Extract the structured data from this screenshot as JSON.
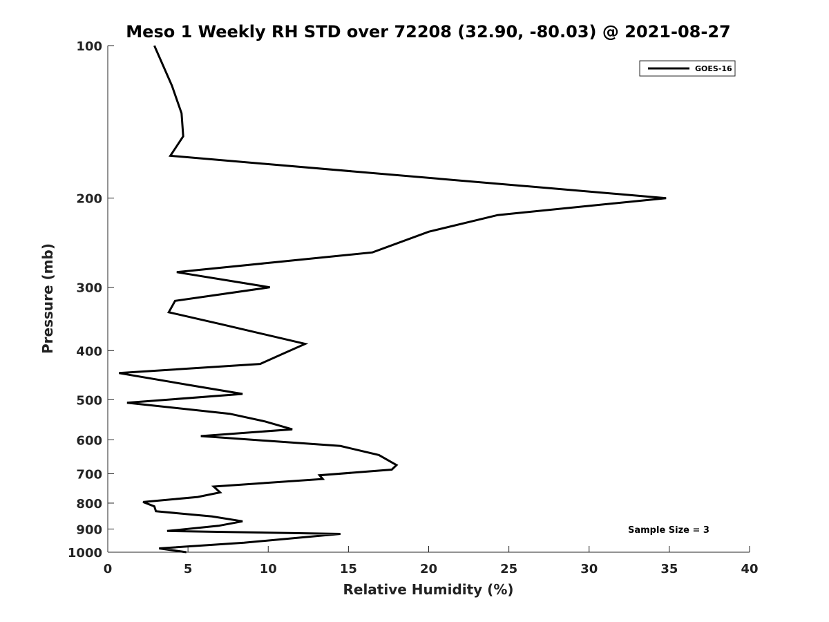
{
  "chart_data": {
    "type": "line",
    "title": "Meso 1 Weekly RH STD over 72208 (32.90, -80.03) @ 2021-08-27",
    "xlabel": "Relative Humidity (%)",
    "ylabel": "Pressure (mb)",
    "xlim": [
      0,
      40
    ],
    "ylim": [
      1000,
      100
    ],
    "y_scale": "log",
    "y_reversed": true,
    "x_ticks": [
      0,
      5,
      10,
      15,
      20,
      25,
      30,
      35,
      40
    ],
    "x_tick_labels": [
      "0",
      "5",
      "10",
      "15",
      "20",
      "25",
      "30",
      "35",
      "40"
    ],
    "y_ticks": [
      100,
      200,
      300,
      400,
      500,
      600,
      700,
      800,
      900,
      1000
    ],
    "y_tick_labels": [
      "100",
      "200",
      "300",
      "400",
      "500",
      "600",
      "700",
      "800",
      "900",
      "1000"
    ],
    "grid": false,
    "legend": "top-right",
    "annotation": "Sample Size = 3",
    "series": [
      {
        "name": "GOES-16",
        "color": "#000000",
        "x": [
          2.9,
          4.0,
          4.6,
          4.7,
          3.9,
          34.8,
          24.3,
          20.0,
          16.5,
          4.3,
          10.1,
          4.2,
          3.8,
          7.1,
          12.3,
          10.9,
          9.5,
          0.7,
          5.3,
          8.4,
          1.2,
          7.6,
          9.8,
          11.5,
          5.8,
          14.5,
          16.9,
          18.0,
          17.7,
          13.2,
          13.4,
          6.6,
          7.0,
          5.6,
          2.2,
          2.9,
          3.0,
          6.5,
          8.4,
          6.9,
          3.7,
          14.5,
          8.5,
          3.2,
          4.9
        ],
        "y": [
          100,
          120,
          136,
          151,
          165,
          200,
          216,
          233,
          256,
          280,
          300,
          319,
          336,
          355,
          388,
          406,
          425,
          443,
          469,
          487,
          507,
          533,
          552,
          572,
          590,
          617,
          643,
          673,
          687,
          705,
          717,
          742,
          762,
          778,
          796,
          812,
          830,
          850,
          869,
          887,
          908,
          920,
          958,
          983,
          1000
        ]
      }
    ]
  }
}
